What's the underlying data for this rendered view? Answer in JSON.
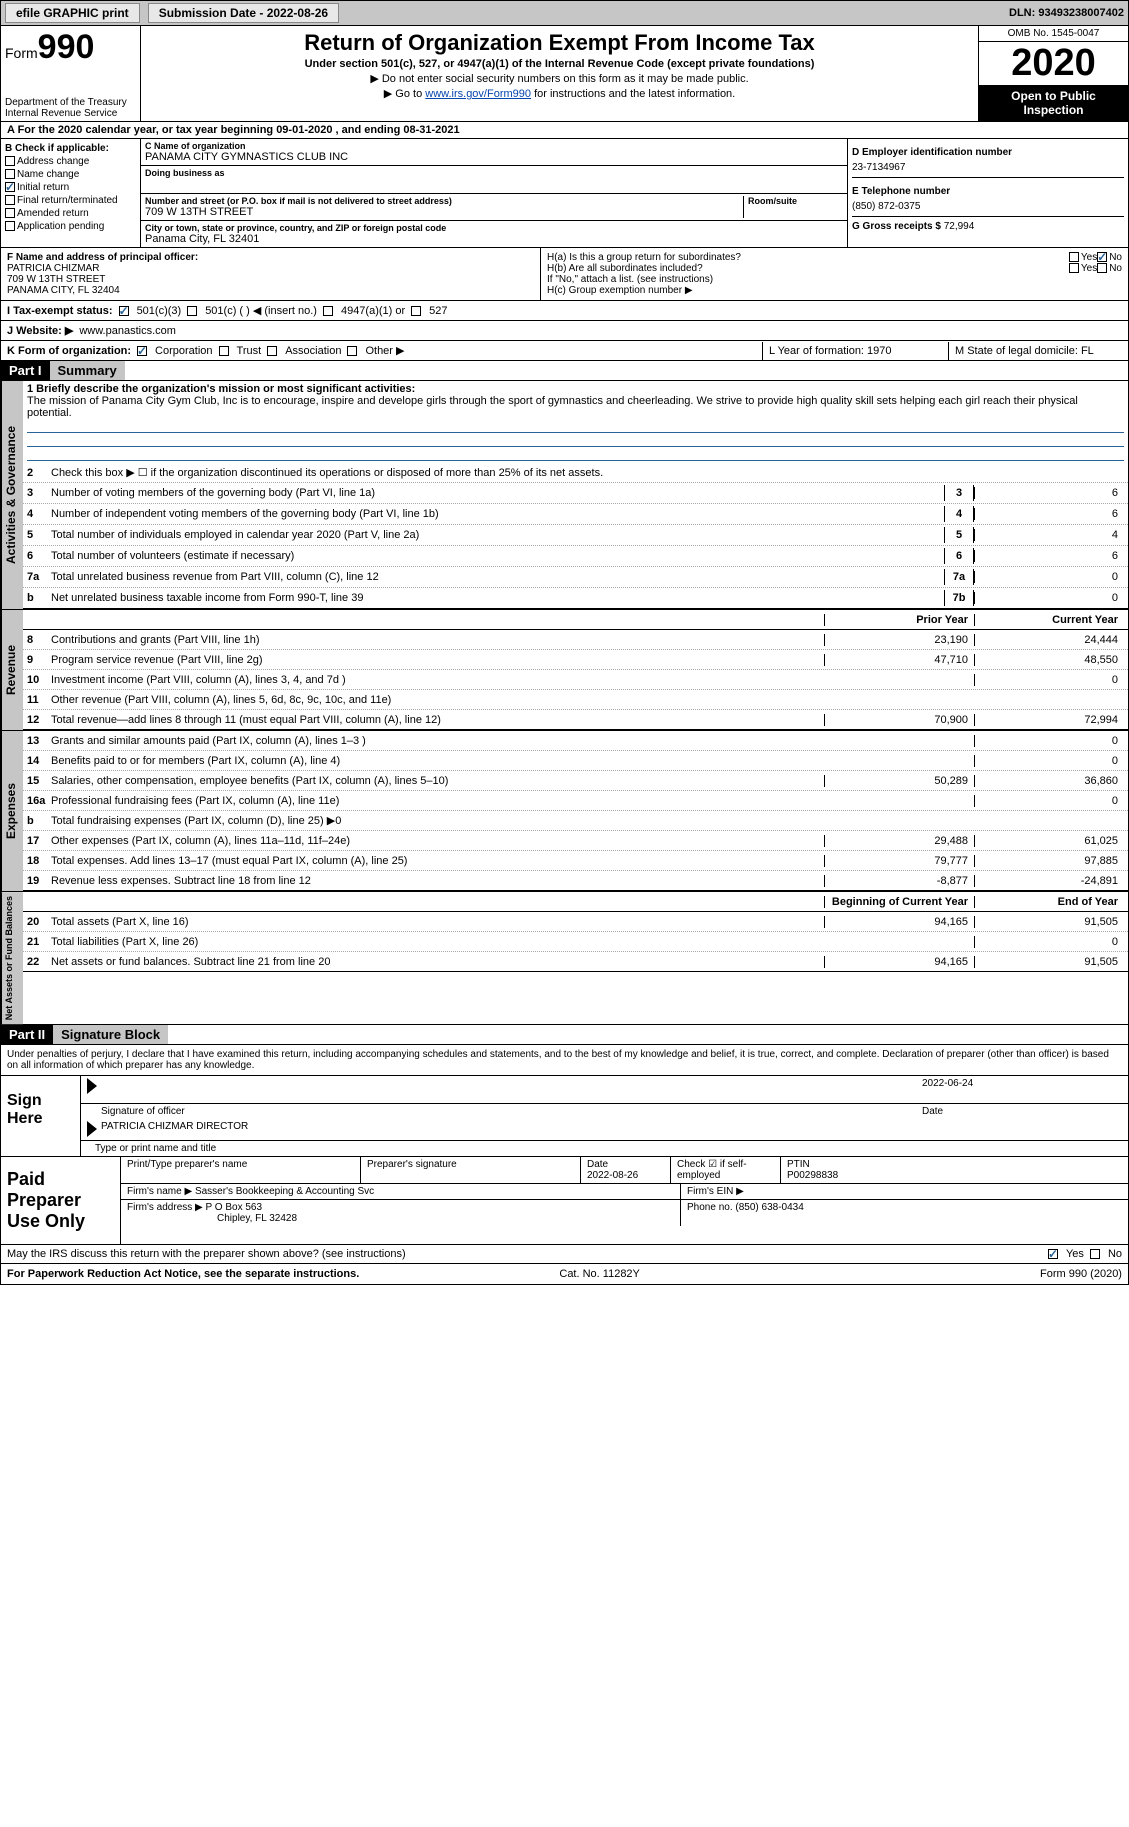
{
  "topbar": {
    "efile": "efile GRAPHIC print",
    "submission": "Submission Date - 2022-08-26",
    "dln": "DLN: 93493238007402"
  },
  "header": {
    "form_word": "Form",
    "form_num": "990",
    "dept": "Department of the Treasury\nInternal Revenue Service",
    "title": "Return of Organization Exempt From Income Tax",
    "subtitle": "Under section 501(c), 527, or 4947(a)(1) of the Internal Revenue Code (except private foundations)",
    "note1": "▶ Do not enter social security numbers on this form as it may be made public.",
    "note2_pre": "▶ Go to ",
    "note2_link": "www.irs.gov/Form990",
    "note2_post": " for instructions and the latest information.",
    "omb": "OMB No. 1545-0047",
    "year": "2020",
    "inspect": "Open to Public Inspection"
  },
  "line_a": "A For the 2020 calendar year, or tax year beginning 09-01-2020   , and ending 08-31-2021",
  "box_b": {
    "title": "B Check if applicable:",
    "items": [
      "Address change",
      "Name change",
      "Initial return",
      "Final return/terminated",
      "Amended return",
      "Application pending"
    ],
    "checked_idx": 2
  },
  "box_c": {
    "name_label": "C Name of organization",
    "name": "PANAMA CITY GYMNASTICS CLUB INC",
    "dba_label": "Doing business as",
    "dba": "",
    "addr_label": "Number and street (or P.O. box if mail is not delivered to street address)",
    "room_label": "Room/suite",
    "addr": "709 W 13TH STREET",
    "city_label": "City or town, state or province, country, and ZIP or foreign postal code",
    "city": "Panama City, FL  32401"
  },
  "box_d": {
    "label": "D Employer identification number",
    "val": "23-7134967"
  },
  "box_e": {
    "label": "E Telephone number",
    "val": "(850) 872-0375"
  },
  "box_g": {
    "label": "G Gross receipts $",
    "val": "72,994"
  },
  "box_f": {
    "label": "F Name and address of principal officer:",
    "line1": "PATRICIA CHIZMAR",
    "line2": "709 W 13TH STREET",
    "line3": "PANAMA CITY, FL  32404"
  },
  "box_h": {
    "ha": "H(a)  Is this a group return for subordinates?",
    "ha_yes": "Yes",
    "ha_no": "No",
    "hb": "H(b)  Are all subordinates included?",
    "hb_yes": "Yes",
    "hb_no": "No",
    "hb_note": "If \"No,\" attach a list. (see instructions)",
    "hc": "H(c)  Group exemption number ▶"
  },
  "line_i": {
    "label": "I   Tax-exempt status:",
    "o1": "501(c)(3)",
    "o2": "501(c) (  ) ◀ (insert no.)",
    "o3": "4947(a)(1) or",
    "o4": "527"
  },
  "line_j": {
    "label": "J   Website: ▶",
    "val": "www.panastics.com"
  },
  "line_k": {
    "label": "K Form of organization:",
    "o1": "Corporation",
    "o2": "Trust",
    "o3": "Association",
    "o4": "Other ▶"
  },
  "line_l": "L Year of formation: 1970",
  "line_m": "M State of legal domicile: FL",
  "part1": {
    "hdr": "Part I",
    "title": "Summary"
  },
  "mission": {
    "label": "1  Briefly describe the organization's mission or most significant activities:",
    "text": "The mission of Panama City Gym Club, Inc is to encourage, inspire and develope girls through the sport of gymnastics and cheerleading. We strive to provide high quality skill sets helping each girl reach their physical potential."
  },
  "gov_lines": {
    "l2": "Check this box ▶ ☐  if the organization discontinued its operations or disposed of more than 25% of its net assets.",
    "l3": {
      "n": "3",
      "d": "Number of voting members of the governing body (Part VI, line 1a)",
      "b": "3",
      "v": "6"
    },
    "l4": {
      "n": "4",
      "d": "Number of independent voting members of the governing body (Part VI, line 1b)",
      "b": "4",
      "v": "6"
    },
    "l5": {
      "n": "5",
      "d": "Total number of individuals employed in calendar year 2020 (Part V, line 2a)",
      "b": "5",
      "v": "4"
    },
    "l6": {
      "n": "6",
      "d": "Total number of volunteers (estimate if necessary)",
      "b": "6",
      "v": "6"
    },
    "l7a": {
      "n": "7a",
      "d": "Total unrelated business revenue from Part VIII, column (C), line 12",
      "b": "7a",
      "v": "0"
    },
    "l7b": {
      "n": "b",
      "d": "Net unrelated business taxable income from Form 990-T, line 39",
      "b": "7b",
      "v": "0"
    }
  },
  "cols": {
    "prior": "Prior Year",
    "current": "Current Year",
    "begin": "Beginning of Current Year",
    "end": "End of Year"
  },
  "revenue": [
    {
      "n": "8",
      "d": "Contributions and grants (Part VIII, line 1h)",
      "p": "23,190",
      "c": "24,444"
    },
    {
      "n": "9",
      "d": "Program service revenue (Part VIII, line 2g)",
      "p": "47,710",
      "c": "48,550"
    },
    {
      "n": "10",
      "d": "Investment income (Part VIII, column (A), lines 3, 4, and 7d )",
      "p": "",
      "c": "0"
    },
    {
      "n": "11",
      "d": "Other revenue (Part VIII, column (A), lines 5, 6d, 8c, 9c, 10c, and 11e)",
      "p": "",
      "c": ""
    },
    {
      "n": "12",
      "d": "Total revenue—add lines 8 through 11 (must equal Part VIII, column (A), line 12)",
      "p": "70,900",
      "c": "72,994"
    }
  ],
  "expenses": [
    {
      "n": "13",
      "d": "Grants and similar amounts paid (Part IX, column (A), lines 1–3 )",
      "p": "",
      "c": "0"
    },
    {
      "n": "14",
      "d": "Benefits paid to or for members (Part IX, column (A), line 4)",
      "p": "",
      "c": "0"
    },
    {
      "n": "15",
      "d": "Salaries, other compensation, employee benefits (Part IX, column (A), lines 5–10)",
      "p": "50,289",
      "c": "36,860"
    },
    {
      "n": "16a",
      "d": "Professional fundraising fees (Part IX, column (A), line 11e)",
      "p": "",
      "c": "0"
    },
    {
      "n": "b",
      "d": "Total fundraising expenses (Part IX, column (D), line 25) ▶0",
      "p": "shaded",
      "c": "shaded"
    },
    {
      "n": "17",
      "d": "Other expenses (Part IX, column (A), lines 11a–11d, 11f–24e)",
      "p": "29,488",
      "c": "61,025"
    },
    {
      "n": "18",
      "d": "Total expenses. Add lines 13–17 (must equal Part IX, column (A), line 25)",
      "p": "79,777",
      "c": "97,885"
    },
    {
      "n": "19",
      "d": "Revenue less expenses. Subtract line 18 from line 12",
      "p": "-8,877",
      "c": "-24,891"
    }
  ],
  "netassets": [
    {
      "n": "20",
      "d": "Total assets (Part X, line 16)",
      "p": "94,165",
      "c": "91,505"
    },
    {
      "n": "21",
      "d": "Total liabilities (Part X, line 26)",
      "p": "",
      "c": "0"
    },
    {
      "n": "22",
      "d": "Net assets or fund balances. Subtract line 21 from line 20",
      "p": "94,165",
      "c": "91,505"
    }
  ],
  "part2": {
    "hdr": "Part II",
    "title": "Signature Block"
  },
  "penalties": "Under penalties of perjury, I declare that I have examined this return, including accompanying schedules and statements, and to the best of my knowledge and belief, it is true, correct, and complete. Declaration of preparer (other than officer) is based on all information of which preparer has any knowledge.",
  "sign": {
    "here": "Sign Here",
    "sig_label": "Signature of officer",
    "date": "2022-06-24",
    "date_label": "Date",
    "name": "PATRICIA CHIZMAR  DIRECTOR",
    "name_label": "Type or print name and title"
  },
  "prep": {
    "left": "Paid Preparer Use Only",
    "h1": "Print/Type preparer's name",
    "h2": "Preparer's signature",
    "h3": "Date",
    "h3v": "2022-08-26",
    "h4": "Check ☑ if self-employed",
    "h5": "PTIN",
    "h5v": "P00298838",
    "firm_label": "Firm's name    ▶",
    "firm": "Sasser's Bookkeeping & Accounting Svc",
    "ein_label": "Firm's EIN ▶",
    "addr_label": "Firm's address ▶",
    "addr1": "P O Box 563",
    "addr2": "Chipley, FL  32428",
    "phone_label": "Phone no.",
    "phone": "(850) 638-0434"
  },
  "discuss": {
    "q": "May the IRS discuss this return with the preparer shown above? (see instructions)",
    "yes": "Yes",
    "no": "No"
  },
  "footer": {
    "left": "For Paperwork Reduction Act Notice, see the separate instructions.",
    "mid": "Cat. No. 11282Y",
    "right": "Form 990 (2020)"
  },
  "side": {
    "gov": "Activities & Governance",
    "rev": "Revenue",
    "exp": "Expenses",
    "na": "Net Assets or Fund Balances"
  }
}
